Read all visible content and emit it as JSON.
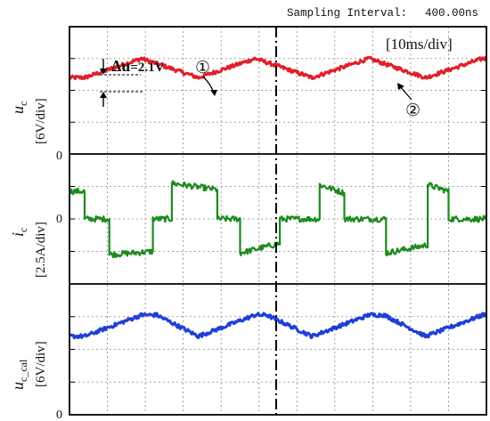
{
  "header": {
    "sampling_label": "Sampling Interval:",
    "sampling_value": "400.00ns"
  },
  "time_scale": "[10ms/div]",
  "colors": {
    "uc": "#e0202a",
    "ic": "#1d8a1d",
    "ucal": "#1e3fd6",
    "grid": "#8a8a8a",
    "frame": "#000000"
  },
  "chart_data": [
    {
      "type": "line",
      "name": "u_c",
      "ylabel_main": "u",
      "ylabel_sub": "c",
      "ylabel_scale": "[6V/div]",
      "zero_label": "0",
      "x_unit": "div",
      "x_range": [
        0,
        11
      ],
      "y_unit": "div",
      "y_range": [
        -3,
        1
      ],
      "x": [
        0,
        0.4,
        1.9,
        3.4,
        4.9,
        6.4,
        7.9,
        9.4,
        10.9,
        11
      ],
      "y": [
        -0.6,
        -0.6,
        0.0,
        -0.6,
        0.0,
        -0.6,
        0.0,
        -0.6,
        0.0,
        0.0
      ],
      "annotation": {
        "delta_text": "Δu",
        "delta_value": "=2.1V",
        "marker1": "①",
        "marker2": "②"
      }
    },
    {
      "type": "line",
      "name": "i_c",
      "ylabel_main": "i",
      "ylabel_sub": "c",
      "ylabel_scale": "[2.5A/div]",
      "zero_label": "0",
      "x_unit": "div",
      "x_range": [
        0,
        11
      ],
      "y_unit": "div",
      "y_range": [
        -2,
        2
      ],
      "x": [
        0,
        0.4,
        0.4,
        1.05,
        1.05,
        2.2,
        2.2,
        2.7,
        2.7,
        3.9,
        3.9,
        4.5,
        4.5,
        5.55,
        5.55,
        6.6,
        6.6,
        7.25,
        7.25,
        8.35,
        8.35,
        9.45,
        9.45,
        10.0,
        10.0,
        11
      ],
      "y": [
        0.85,
        0.85,
        0,
        0,
        -1.1,
        -1.0,
        0,
        0,
        1.1,
        0.9,
        0,
        0,
        -1.05,
        -0.75,
        0,
        0,
        1.05,
        0.8,
        0,
        0,
        -1.05,
        -0.8,
        1.05,
        0.85,
        0,
        0
      ]
    },
    {
      "type": "line",
      "name": "u_c_cal",
      "ylabel_main": "u",
      "ylabel_sub": "c_cal",
      "ylabel_scale": "[6V/div]",
      "zero_label": "0",
      "x_unit": "div",
      "x_range": [
        0,
        11
      ],
      "y_unit": "div",
      "y_range": [
        -2,
        2
      ],
      "x": [
        0,
        0.4,
        1.9,
        2.3,
        3.4,
        4.9,
        5.2,
        6.4,
        7.9,
        8.3,
        9.4,
        10.9,
        11
      ],
      "y": [
        0.4,
        0.4,
        1.05,
        1.05,
        0.4,
        1.05,
        1.05,
        0.4,
        1.05,
        1.05,
        0.4,
        1.05,
        1.05
      ]
    }
  ]
}
